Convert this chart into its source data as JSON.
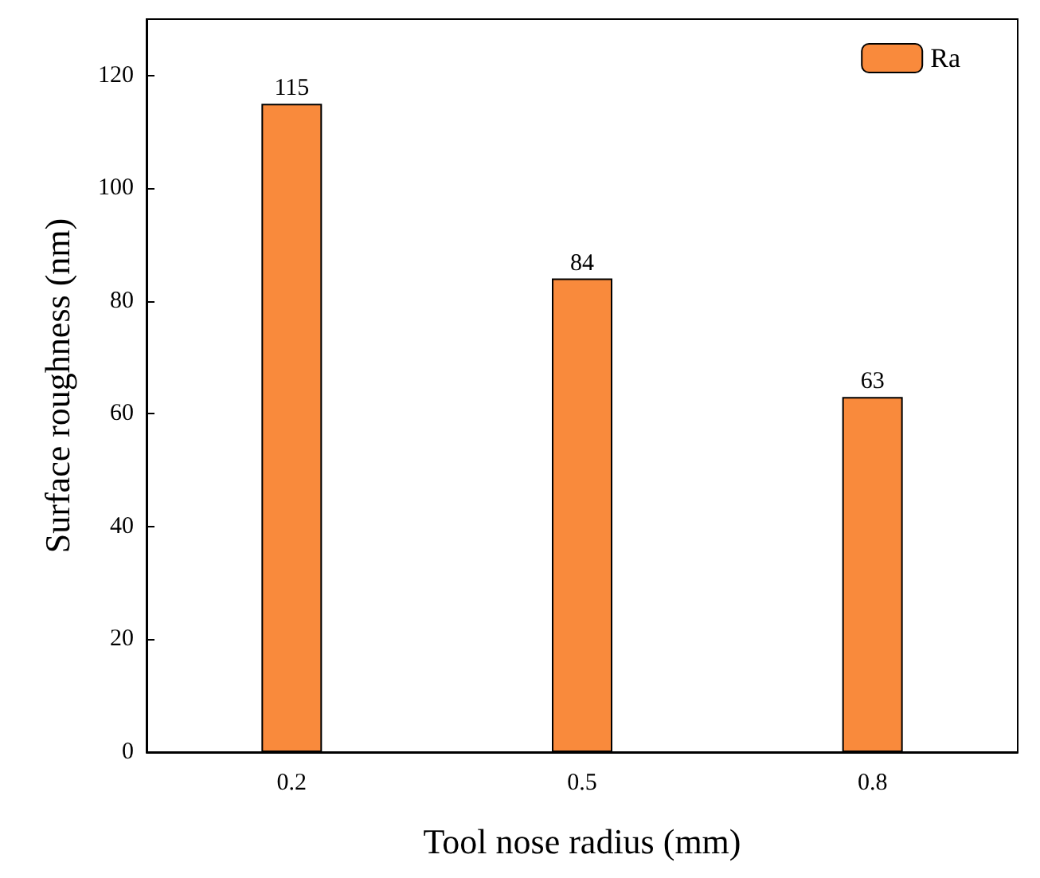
{
  "chart_data": {
    "type": "bar",
    "xlabel": "Tool nose radius (mm)",
    "ylabel": "Surface roughness (nm)",
    "categories": [
      "0.2",
      "0.5",
      "0.8"
    ],
    "series": [
      {
        "name": "Ra",
        "color": "#f98a3c",
        "values": [
          115,
          84,
          63
        ]
      }
    ],
    "ylim": [
      0,
      130
    ],
    "yticks": [
      0,
      20,
      40,
      60,
      80,
      100,
      120
    ],
    "grid": false,
    "legend": "top right",
    "data_labels": true
  }
}
